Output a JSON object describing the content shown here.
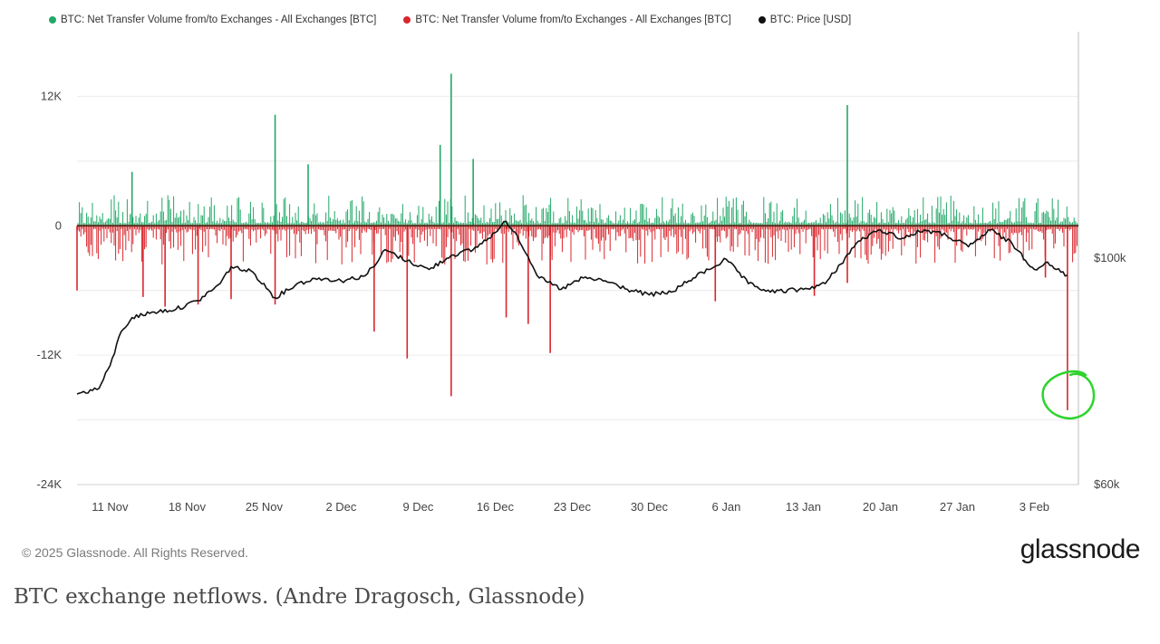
{
  "chart_data": {
    "type": "bar",
    "legend": [
      {
        "label": "BTC: Net Transfer Volume from/to Exchanges - All Exchanges [BTC]",
        "color": "#22a867"
      },
      {
        "label": "BTC: Net Transfer Volume from/to Exchanges - All Exchanges [BTC]",
        "color": "#d9262c"
      },
      {
        "label": "BTC: Price [USD]",
        "color": "#111111"
      }
    ],
    "left_axis": {
      "ticks": [
        "12K",
        "0",
        "-12K",
        "-24K"
      ],
      "tick_values": [
        12000,
        0,
        -12000,
        -24000
      ],
      "ylim": [
        -24000,
        18000
      ]
    },
    "right_axis": {
      "ticks": [
        "$100k",
        "$60k"
      ],
      "tick_values": [
        100000,
        60000
      ],
      "ylim": [
        60000,
        140000
      ]
    },
    "x_axis": {
      "ticks": [
        "11 Nov",
        "18 Nov",
        "25 Nov",
        "2 Dec",
        "9 Dec",
        "16 Dec",
        "23 Dec",
        "30 Dec",
        "6 Jan",
        "13 Jan",
        "20 Jan",
        "27 Jan",
        "3 Feb"
      ],
      "range": [
        "2024-11-08",
        "2025-02-07"
      ]
    },
    "netflow_spikes": [
      {
        "date": "2024-11-08",
        "value": -6000
      },
      {
        "date": "2024-11-13",
        "value": 5000
      },
      {
        "date": "2024-11-14",
        "value": -6600
      },
      {
        "date": "2024-11-16",
        "value": -7500
      },
      {
        "date": "2024-11-19",
        "value": -7300
      },
      {
        "date": "2024-11-22",
        "value": -6800
      },
      {
        "date": "2024-11-26",
        "value": 10300
      },
      {
        "date": "2024-11-26",
        "value": -7300
      },
      {
        "date": "2024-11-29",
        "value": 5700
      },
      {
        "date": "2024-12-05",
        "value": -9800
      },
      {
        "date": "2024-12-08",
        "value": -12300
      },
      {
        "date": "2024-12-11",
        "value": 7500
      },
      {
        "date": "2024-12-12",
        "value": 14100
      },
      {
        "date": "2024-12-12",
        "value": -15800
      },
      {
        "date": "2024-12-14",
        "value": 6200
      },
      {
        "date": "2024-12-17",
        "value": -8500
      },
      {
        "date": "2024-12-19",
        "value": -9100
      },
      {
        "date": "2024-12-21",
        "value": -11800
      },
      {
        "date": "2025-01-05",
        "value": -7000
      },
      {
        "date": "2025-01-14",
        "value": -6500
      },
      {
        "date": "2025-01-17",
        "value": 11200
      },
      {
        "date": "2025-01-17",
        "value": -5300
      },
      {
        "date": "2025-02-04",
        "value": -4800
      },
      {
        "date": "2025-02-06",
        "value": -17100
      }
    ],
    "price": {
      "dates": [
        "2024-11-08",
        "2024-11-10",
        "2024-11-11",
        "2024-11-12",
        "2024-11-13",
        "2024-11-15",
        "2024-11-17",
        "2024-11-19",
        "2024-11-21",
        "2024-11-22",
        "2024-11-24",
        "2024-11-26",
        "2024-11-28",
        "2024-11-30",
        "2024-12-02",
        "2024-12-04",
        "2024-12-05",
        "2024-12-06",
        "2024-12-08",
        "2024-12-10",
        "2024-12-12",
        "2024-12-14",
        "2024-12-16",
        "2024-12-17",
        "2024-12-18",
        "2024-12-20",
        "2024-12-22",
        "2024-12-24",
        "2024-12-26",
        "2024-12-28",
        "2024-12-30",
        "2025-01-01",
        "2025-01-03",
        "2025-01-06",
        "2025-01-08",
        "2025-01-10",
        "2025-01-13",
        "2025-01-15",
        "2025-01-18",
        "2025-01-20",
        "2025-01-22",
        "2025-01-24",
        "2025-01-26",
        "2025-01-28",
        "2025-01-30",
        "2025-02-01",
        "2025-02-03",
        "2025-02-04",
        "2025-02-05",
        "2025-02-06"
      ],
      "values": [
        76000,
        77000,
        81000,
        87000,
        89500,
        90500,
        91000,
        92500,
        95500,
        98500,
        97500,
        93000,
        95500,
        96500,
        96000,
        96800,
        98500,
        101500,
        99500,
        98000,
        100500,
        101500,
        104500,
        106500,
        104000,
        96500,
        94500,
        96500,
        96000,
        94500,
        93500,
        94000,
        96500,
        99800,
        95500,
        94000,
        94500,
        95500,
        103000,
        105000,
        103500,
        105000,
        104000,
        102000,
        105000,
        102500,
        98000,
        99200,
        98000,
        97000
      ]
    }
  },
  "footer": {
    "copyright": "© 2025 Glassnode. All Rights Reserved.",
    "brand": "glassnode"
  },
  "caption": "BTC exchange netflows. (Andre Dragosch, Glassnode)"
}
